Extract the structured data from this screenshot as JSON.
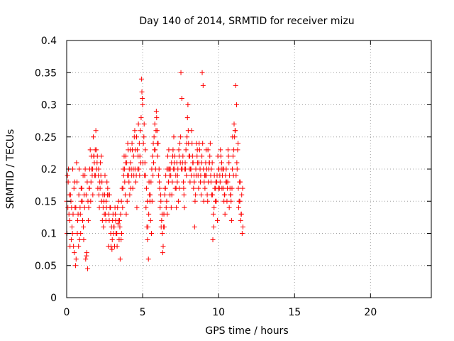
{
  "chart_data": {
    "type": "scatter",
    "title": "Day 140 of 2014, SRMTID for receiver mizu",
    "xlabel": "GPS time / hours",
    "ylabel": "SRMTID / TECUs",
    "xlim": [
      0,
      24
    ],
    "ylim": [
      0,
      0.4
    ],
    "xticks": [
      0,
      5,
      10,
      15,
      20
    ],
    "xtick_labels": [
      "0",
      "5",
      "10",
      "15",
      "20"
    ],
    "yticks": [
      0,
      0.05,
      0.1,
      0.15,
      0.2,
      0.25,
      0.3,
      0.35,
      0.4
    ],
    "ytick_labels": [
      "0",
      "0.05",
      "0.1",
      "0.15",
      "0.2",
      "0.25",
      "0.3",
      "0.35",
      "0.4"
    ],
    "grid": true,
    "marker": "+",
    "color": "#ff0000",
    "series": [
      {
        "x": [
          0.0,
          0.1,
          0.2,
          0.3,
          0.4,
          0.5,
          0.6,
          0.7,
          0.8,
          0.9,
          1.0,
          1.1,
          1.2,
          1.3,
          1.4,
          1.5,
          1.6,
          1.7,
          1.8,
          1.9,
          2.0,
          2.1,
          2.2,
          2.3,
          2.4,
          2.5,
          2.6,
          2.7,
          2.8,
          2.9,
          3.0,
          3.1,
          3.2,
          3.3,
          3.4,
          3.5,
          3.6,
          3.7,
          3.8,
          3.9,
          4.0,
          4.1,
          4.2,
          4.3,
          4.4,
          4.5,
          4.6,
          4.7,
          4.8,
          4.9,
          5.0,
          5.1,
          5.2,
          5.3,
          5.4,
          5.5,
          5.6,
          5.7,
          5.8,
          5.9,
          6.0,
          6.1,
          6.2,
          6.3,
          6.4,
          6.5,
          6.6,
          6.7,
          6.8,
          6.9,
          7.0,
          7.1,
          7.2,
          7.3,
          7.4,
          7.5,
          7.6,
          7.7,
          7.8,
          7.9,
          8.0,
          8.1,
          8.2,
          8.3,
          8.4,
          8.5,
          8.6,
          8.7,
          8.8,
          8.9,
          9.0,
          9.1,
          9.2,
          9.3,
          9.4,
          9.5,
          9.6,
          9.7,
          9.8,
          9.9,
          10.0,
          10.1,
          10.2,
          10.3,
          10.4,
          10.5,
          10.6,
          10.7,
          10.8,
          10.9,
          11.0,
          11.1,
          11.2,
          11.3,
          11.4,
          11.5,
          11.6,
          0.05,
          0.15,
          0.25,
          0.35,
          0.45,
          0.55,
          0.65,
          0.75,
          0.85,
          0.95,
          1.05,
          1.15,
          1.25,
          1.35,
          1.45,
          1.55,
          1.65,
          1.75,
          1.85,
          1.95,
          2.05,
          2.15,
          2.25,
          2.35,
          2.45,
          2.55,
          2.65,
          2.75,
          2.85,
          2.95,
          3.05,
          3.15,
          3.25,
          3.35,
          3.45,
          3.55,
          3.65,
          3.75,
          3.85,
          3.95,
          4.05,
          4.15,
          4.25,
          4.35,
          4.45,
          4.55,
          4.65,
          4.75,
          4.85,
          4.95,
          5.05,
          5.15,
          5.25,
          5.35,
          5.45,
          5.55,
          5.65,
          5.75,
          5.85,
          5.95,
          6.05,
          6.15,
          6.25,
          6.35,
          6.45,
          6.55,
          6.65,
          6.75,
          6.85,
          6.95,
          7.05,
          7.15,
          7.25,
          7.35,
          7.45,
          7.55,
          7.65,
          7.75,
          7.85,
          7.95,
          8.05,
          8.15,
          8.25,
          8.35,
          8.45,
          8.55,
          8.65,
          8.75,
          8.85,
          8.95,
          9.05,
          9.15,
          9.25,
          9.35,
          9.45,
          9.55,
          9.65,
          9.75,
          9.85,
          9.95,
          10.05,
          10.15,
          10.25,
          10.35,
          10.45,
          10.55,
          10.65,
          10.75,
          10.85,
          10.95,
          11.05,
          11.15,
          11.25,
          11.35,
          11.45,
          11.55,
          0.02,
          0.12,
          0.22,
          0.32,
          0.42,
          0.52,
          0.62,
          0.72,
          0.82,
          0.92,
          1.02,
          1.12,
          1.22,
          1.32,
          1.42,
          1.52,
          1.62,
          1.72,
          1.82,
          1.92,
          2.02,
          2.12,
          2.22,
          2.32,
          2.42,
          2.52,
          2.62,
          2.72,
          2.82,
          2.92,
          3.02,
          3.12,
          3.22,
          3.32,
          3.42,
          3.52,
          3.62,
          3.72,
          3.82,
          3.92,
          4.02,
          4.12,
          4.22,
          4.32,
          4.42,
          4.52,
          4.62,
          4.72,
          4.82,
          4.92,
          5.02,
          5.12,
          5.22,
          5.32,
          5.42,
          5.52,
          5.62,
          5.72,
          5.82,
          5.92,
          6.02,
          6.12,
          6.22,
          6.32,
          6.42,
          6.52,
          6.62,
          6.72,
          6.82,
          6.92,
          7.02,
          7.12,
          7.22,
          7.32,
          7.42,
          7.52,
          7.62,
          7.72,
          7.82,
          7.92,
          8.02,
          8.12,
          8.22,
          8.32,
          8.42,
          8.52,
          8.62,
          8.72,
          8.82,
          8.92,
          9.02,
          9.12,
          9.22,
          9.32,
          9.42,
          9.52,
          9.62,
          9.72,
          9.82,
          9.92,
          10.02,
          10.12,
          10.22,
          10.32,
          10.42,
          10.52,
          10.62,
          10.72,
          10.82,
          10.92,
          11.02,
          11.12,
          11.22,
          11.32,
          11.42,
          11.52,
          0.08,
          0.18,
          0.28,
          0.38,
          0.48,
          0.58,
          0.68,
          0.78,
          0.88,
          0.98,
          1.08,
          1.18,
          1.28,
          1.38,
          1.48,
          1.58,
          1.68,
          1.78,
          1.88,
          1.98,
          2.08,
          2.18,
          2.28,
          2.38,
          2.48,
          2.58,
          2.68,
          2.78,
          2.88,
          2.98,
          3.08,
          3.18,
          3.28,
          3.38,
          3.48,
          3.58,
          3.68,
          3.78,
          3.88,
          3.98,
          4.08,
          4.18,
          4.28,
          4.38,
          4.48,
          4.58,
          4.68,
          4.78,
          4.88,
          4.98,
          5.08,
          5.18,
          5.28,
          5.38,
          5.48,
          5.58,
          5.68,
          5.78,
          5.88,
          5.98,
          6.08,
          6.18,
          6.28,
          6.38,
          6.48,
          6.58,
          6.68,
          6.78,
          6.88,
          6.98,
          7.08,
          7.18,
          7.28,
          7.38,
          7.48,
          7.58,
          7.68,
          7.78,
          7.88,
          7.98,
          8.08,
          8.18,
          8.28,
          8.38,
          8.48,
          8.58,
          8.68,
          8.78,
          8.88,
          8.98,
          9.08,
          9.18,
          9.28,
          9.38,
          9.48,
          9.58,
          9.68,
          9.78,
          9.88,
          9.98,
          10.08,
          10.18,
          10.28,
          10.38,
          10.48,
          10.58,
          10.68,
          10.78,
          10.88,
          10.98,
          11.08,
          11.18,
          11.28,
          11.38,
          11.48,
          11.58
        ],
        "y": [
          0.15,
          0.18,
          0.12,
          0.09,
          0.2,
          0.07,
          0.14,
          0.1,
          0.16,
          0.13,
          0.17,
          0.11,
          0.19,
          0.065,
          0.15,
          0.17,
          0.18,
          0.2,
          0.22,
          0.19,
          0.21,
          0.2,
          0.17,
          0.15,
          0.14,
          0.16,
          0.15,
          0.17,
          0.12,
          0.1,
          0.09,
          0.11,
          0.13,
          0.1,
          0.12,
          0.11,
          0.15,
          0.17,
          0.2,
          0.22,
          0.19,
          0.18,
          0.21,
          0.24,
          0.22,
          0.2,
          0.25,
          0.22,
          0.19,
          0.28,
          0.3,
          0.27,
          0.19,
          0.15,
          0.13,
          0.16,
          0.2,
          0.24,
          0.27,
          0.29,
          0.22,
          0.18,
          0.15,
          0.1,
          0.13,
          0.17,
          0.2,
          0.18,
          0.16,
          0.21,
          0.23,
          0.2,
          0.17,
          0.19,
          0.22,
          0.25,
          0.2,
          0.17,
          0.21,
          0.24,
          0.26,
          0.22,
          0.19,
          0.21,
          0.18,
          0.2,
          0.23,
          0.21,
          0.18,
          0.22,
          0.2,
          0.17,
          0.19,
          0.23,
          0.21,
          0.18,
          0.16,
          0.14,
          0.17,
          0.19,
          0.2,
          0.18,
          0.21,
          0.17,
          0.16,
          0.2,
          0.18,
          0.14,
          0.16,
          0.2,
          0.23,
          0.26,
          0.21,
          0.17,
          0.15,
          0.13,
          0.11,
          0.19,
          0.13,
          0.16,
          0.11,
          0.08,
          0.14,
          0.21,
          0.13,
          0.09,
          0.17,
          0.12,
          0.16,
          0.06,
          0.18,
          0.14,
          0.23,
          0.2,
          0.25,
          0.19,
          0.23,
          0.17,
          0.14,
          0.19,
          0.12,
          0.15,
          0.13,
          0.18,
          0.08,
          0.14,
          0.11,
          0.13,
          0.08,
          0.1,
          0.14,
          0.09,
          0.13,
          0.17,
          0.19,
          0.16,
          0.21,
          0.23,
          0.16,
          0.2,
          0.17,
          0.25,
          0.18,
          0.23,
          0.2,
          0.26,
          0.32,
          0.24,
          0.21,
          0.17,
          0.11,
          0.16,
          0.18,
          0.22,
          0.25,
          0.2,
          0.26,
          0.19,
          0.14,
          0.12,
          0.08,
          0.16,
          0.14,
          0.22,
          0.2,
          0.19,
          0.18,
          0.25,
          0.17,
          0.21,
          0.15,
          0.24,
          0.2,
          0.22,
          0.14,
          0.23,
          0.28,
          0.22,
          0.2,
          0.24,
          0.17,
          0.15,
          0.24,
          0.19,
          0.23,
          0.16,
          0.24,
          0.18,
          0.21,
          0.16,
          0.2,
          0.24,
          0.16,
          0.13,
          0.17,
          0.15,
          0.22,
          0.17,
          0.22,
          0.19,
          0.15,
          0.19,
          0.15,
          0.22,
          0.17,
          0.12,
          0.22,
          0.25,
          0.19,
          0.23,
          0.15,
          0.12,
          0.1,
          0.1,
          0.2,
          0.08,
          0.14,
          0.13,
          0.18,
          0.06,
          0.12,
          0.2,
          0.1,
          0.15,
          0.09,
          0.2,
          0.07,
          0.12,
          0.2,
          0.22,
          0.16,
          0.21,
          0.26,
          0.22,
          0.16,
          0.21,
          0.18,
          0.11,
          0.19,
          0.14,
          0.16,
          0.16,
          0.08,
          0.12,
          0.11,
          0.12,
          0.08,
          0.15,
          0.06,
          0.1,
          0.2,
          0.18,
          0.13,
          0.24,
          0.2,
          0.17,
          0.23,
          0.19,
          0.23,
          0.14,
          0.27,
          0.22,
          0.34,
          0.21,
          0.19,
          0.14,
          0.09,
          0.18,
          0.12,
          0.15,
          0.21,
          0.23,
          0.28,
          0.24,
          0.17,
          0.11,
          0.07,
          0.11,
          0.19,
          0.13,
          0.23,
          0.2,
          0.16,
          0.2,
          0.22,
          0.14,
          0.2,
          0.17,
          0.35,
          0.21,
          0.16,
          0.2,
          0.25,
          0.24,
          0.18,
          0.26,
          0.21,
          0.11,
          0.19,
          0.21,
          0.24,
          0.19,
          0.35,
          0.15,
          0.19,
          0.2,
          0.18,
          0.22,
          0.2,
          0.09,
          0.19,
          0.18,
          0.12,
          0.2,
          0.23,
          0.17,
          0.2,
          0.13,
          0.18,
          0.23,
          0.19,
          0.15,
          0.25,
          0.27,
          0.33,
          0.2,
          0.14,
          0.18,
          0.16,
          0.14,
          0.16,
          0.15,
          0.1,
          0.17,
          0.05,
          0.18,
          0.08,
          0.14,
          0.15,
          0.19,
          0.14,
          0.16,
          0.045,
          0.17,
          0.15,
          0.19,
          0.22,
          0.23,
          0.2,
          0.19,
          0.18,
          0.22,
          0.16,
          0.13,
          0.12,
          0.16,
          0.13,
          0.14,
          0.075,
          0.1,
          0.14,
          0.1,
          0.115,
          0.12,
          0.09,
          0.14,
          0.22,
          0.21,
          0.15,
          0.19,
          0.23,
          0.19,
          0.2,
          0.26,
          0.19,
          0.2,
          0.24,
          0.21,
          0.31,
          0.25,
          0.23,
          0.11,
          0.06,
          0.15,
          0.1,
          0.19,
          0.23,
          0.26,
          0.24,
          0.2,
          0.16,
          0.13,
          0.11,
          0.17,
          0.15,
          0.2,
          0.19,
          0.14,
          0.22,
          0.21,
          0.19,
          0.18,
          0.23,
          0.21,
          0.31,
          0.18,
          0.2,
          0.19,
          0.3,
          0.2,
          0.2,
          0.22,
          0.19,
          0.16,
          0.22,
          0.17,
          0.2,
          0.21,
          0.33,
          0.19,
          0.23,
          0.15,
          0.21,
          0.19,
          0.21,
          0.11,
          0.15,
          0.18,
          0.17,
          0.19,
          0.2,
          0.2,
          0.16,
          0.18,
          0.17,
          0.21,
          0.16,
          0.17,
          0.19,
          0.26,
          0.3,
          0.24,
          0.18,
          0.13,
          0.17
        ]
      }
    ]
  }
}
